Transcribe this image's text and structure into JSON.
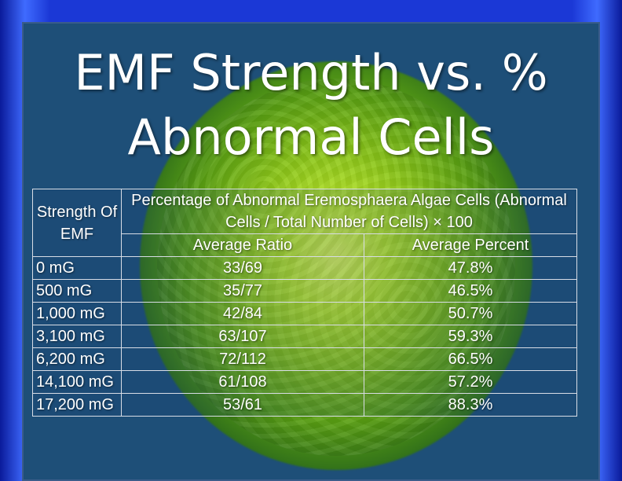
{
  "slide": {
    "title_line1": "EMF Strength vs. %",
    "title_line2": "Abnormal Cells"
  },
  "table": {
    "header": {
      "strength": "Strength Of EMF",
      "percentage": "Percentage of Abnormal Eremosphaera Algae Cells (Abnormal Cells / Total Number of Cells) × 100",
      "avg_ratio": "Average Ratio",
      "avg_percent": "Average Percent"
    },
    "rows": [
      {
        "strength": "0 mG",
        "ratio": "33/69",
        "percent": "47.8%"
      },
      {
        "strength": "500 mG",
        "ratio": "35/77",
        "percent": "46.5%"
      },
      {
        "strength": "1,000 mG",
        "ratio": "42/84",
        "percent": "50.7%"
      },
      {
        "strength": "3,100 mG",
        "ratio": "63/107",
        "percent": "59.3%"
      },
      {
        "strength": "6,200 mG",
        "ratio": "72/112",
        "percent": "66.5%"
      },
      {
        "strength": "14,100 mG",
        "ratio": "61/108",
        "percent": "57.2%"
      },
      {
        "strength": "17,200 mG",
        "ratio": "53/61",
        "percent": "88.3%"
      }
    ]
  }
}
